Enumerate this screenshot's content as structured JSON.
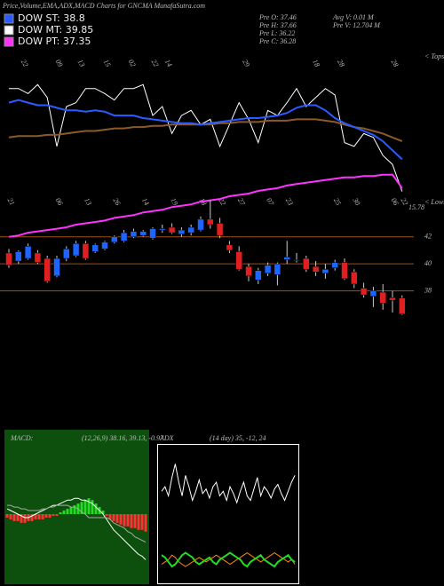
{
  "header": {
    "title": "Price,Volume,EMA,ADX,MACD Charts for GNCMA MunafaSutra.com",
    "legend": [
      {
        "label": "DOW ST: 38.8",
        "color": "#2a5cff"
      },
      {
        "label": "DOW MT: 39.85",
        "color": "#ffffff"
      },
      {
        "label": "DOW PT: 37.35",
        "color": "#ff33ff"
      }
    ],
    "info": [
      "Pre  O: 37.46",
      "Pre  H: 37.66",
      "Pre  L: 36.22",
      "Pre  C: 36.28",
      "Avg  V: 0.01  M",
      "Pre  V: 12.704  M"
    ]
  },
  "chart_data": [
    {
      "type": "line",
      "ylim": [
        0,
        100
      ],
      "annotations": [
        "< Tops"
      ],
      "xticks": [
        {
          "value": 1.4,
          "label": "22"
        },
        {
          "value": 5,
          "label": "09"
        },
        {
          "value": 7.3,
          "label": "13"
        },
        {
          "value": 10,
          "label": "15"
        },
        {
          "value": 12.6,
          "label": "02"
        },
        {
          "value": 15,
          "label": "22"
        },
        {
          "value": 16.4,
          "label": "14"
        },
        {
          "value": 24.5,
          "label": "29"
        },
        {
          "value": 31.8,
          "label": "18"
        },
        {
          "value": 34.4,
          "label": "28"
        },
        {
          "value": 40,
          "label": "28"
        }
      ],
      "series": [
        {
          "color": "#ffffff",
          "values": [
            83,
            83,
            79,
            86,
            76,
            38,
            69,
            72,
            83,
            83,
            79,
            74,
            83,
            83,
            86,
            62,
            69,
            48,
            62,
            66,
            55,
            59,
            38,
            55,
            72,
            59,
            41,
            66,
            62,
            72,
            83,
            69,
            76,
            83,
            78,
            41,
            38,
            48,
            45,
            31,
            24,
            3
          ]
        },
        {
          "color": "#8b5a2b",
          "values": [
            45,
            46,
            46,
            46,
            47,
            47,
            48,
            49,
            50,
            50,
            51,
            52,
            52,
            53,
            53,
            54,
            54,
            55,
            55,
            55,
            55,
            55,
            56,
            56,
            57,
            57,
            57,
            58,
            58,
            58,
            59,
            59,
            59,
            58,
            57,
            55,
            53,
            52,
            50,
            48,
            45,
            42
          ]
        },
        {
          "color": "#2a5cff",
          "values": [
            72,
            74,
            72,
            70,
            70,
            68,
            66,
            66,
            65,
            66,
            65,
            62,
            62,
            62,
            60,
            59,
            58,
            57,
            56,
            56,
            55,
            56,
            57,
            58,
            59,
            60,
            60,
            61,
            62,
            64,
            68,
            70,
            70,
            66,
            60,
            56,
            53,
            50,
            47,
            42,
            35,
            28
          ]
        }
      ]
    },
    {
      "type": "candlestick",
      "ylim": [
        36,
        47.5
      ],
      "yticks": [
        42,
        40,
        38
      ],
      "annotations": [
        "< Lows",
        "15.78"
      ],
      "xticks": [
        {
          "value": 0,
          "label": "21"
        },
        {
          "value": 5,
          "label": "06"
        },
        {
          "value": 8,
          "label": "13"
        },
        {
          "value": 11,
          "label": "26"
        },
        {
          "value": 14,
          "label": "14"
        },
        {
          "value": 17,
          "label": "19"
        },
        {
          "value": 20,
          "label": "18"
        },
        {
          "value": 22,
          "label": "22"
        },
        {
          "value": 24,
          "label": "27"
        },
        {
          "value": 27,
          "label": "07"
        },
        {
          "value": 29,
          "label": "23"
        },
        {
          "value": 34,
          "label": "25"
        },
        {
          "value": 36,
          "label": "30"
        },
        {
          "value": 40,
          "label": "06"
        },
        {
          "value": 41,
          "label": "22"
        }
      ],
      "up_color": "#1e64ff",
      "down_color": "#e02020",
      "candles": [
        [
          40.8,
          41.1,
          39.7,
          39.9
        ],
        [
          40.2,
          41.0,
          40.0,
          40.9
        ],
        [
          40.4,
          41.5,
          40.3,
          41.3
        ],
        [
          40.8,
          41.0,
          40.0,
          40.1
        ],
        [
          40.4,
          40.6,
          38.6,
          38.7
        ],
        [
          39.1,
          40.6,
          39.0,
          40.4
        ],
        [
          40.4,
          41.3,
          40.2,
          41.1
        ],
        [
          40.6,
          41.7,
          40.5,
          41.5
        ],
        [
          41.5,
          41.7,
          40.3,
          40.4
        ],
        [
          40.9,
          41.5,
          40.8,
          41.4
        ],
        [
          41.1,
          41.7,
          41.0,
          41.6
        ],
        [
          41.6,
          42.1,
          41.5,
          42.0
        ],
        [
          41.7,
          42.5,
          41.6,
          42.3
        ],
        [
          42.0,
          42.6,
          41.9,
          42.4
        ],
        [
          42.1,
          42.5,
          42.0,
          42.4
        ],
        [
          41.9,
          42.7,
          41.8,
          42.6
        ],
        [
          42.5,
          42.9,
          42.3,
          42.6
        ],
        [
          42.7,
          43.0,
          42.2,
          42.3
        ],
        [
          42.2,
          42.7,
          42.0,
          42.5
        ],
        [
          42.3,
          42.9,
          42.1,
          42.7
        ],
        [
          42.5,
          43.5,
          42.4,
          43.3
        ],
        [
          43.3,
          44.7,
          42.6,
          42.9
        ],
        [
          43.0,
          43.4,
          41.9,
          42.1
        ],
        [
          41.4,
          41.7,
          40.8,
          41.0
        ],
        [
          40.9,
          41.3,
          39.5,
          39.6
        ],
        [
          39.8,
          40.0,
          38.7,
          39.1
        ],
        [
          38.8,
          39.7,
          38.5,
          39.5
        ],
        [
          39.3,
          40.1,
          39.1,
          39.9
        ],
        [
          39.2,
          40.1,
          38.4,
          40.0
        ],
        [
          40.3,
          41.7,
          40.0,
          40.5
        ],
        [
          40.3,
          40.8,
          40.1,
          40.3
        ],
        [
          40.4,
          40.6,
          39.4,
          39.6
        ],
        [
          39.8,
          40.2,
          39.1,
          39.4
        ],
        [
          39.3,
          40.0,
          38.9,
          39.6
        ],
        [
          39.7,
          40.3,
          39.5,
          40.1
        ],
        [
          40.1,
          40.4,
          38.8,
          38.9
        ],
        [
          39.4,
          39.6,
          38.2,
          38.5
        ],
        [
          38.2,
          38.6,
          37.5,
          37.7
        ],
        [
          37.6,
          38.3,
          36.8,
          38.0
        ],
        [
          37.9,
          38.5,
          36.6,
          37.1
        ],
        [
          37.5,
          38.0,
          36.4,
          37.3
        ],
        [
          37.46,
          37.66,
          36.22,
          36.28
        ]
      ],
      "series": [
        {
          "color": "#ff33ff",
          "values": [
            42.0,
            42.1,
            42.3,
            42.4,
            42.5,
            42.6,
            42.7,
            42.9,
            43.0,
            43.1,
            43.2,
            43.4,
            43.5,
            43.6,
            43.8,
            43.9,
            44.0,
            44.2,
            44.3,
            44.4,
            44.6,
            44.7,
            44.8,
            45.0,
            45.1,
            45.2,
            45.4,
            45.5,
            45.6,
            45.8,
            45.9,
            46.0,
            46.1,
            46.2,
            46.3,
            46.4,
            46.4,
            46.5,
            46.5,
            46.6,
            46.6,
            45.6
          ]
        }
      ]
    },
    {
      "type": "macd",
      "title": "MACD:",
      "subtitle": "(12,26,9) 38.16, 39.13, -0.97",
      "ylim": [
        -4,
        4
      ],
      "up_color": "#22dd22",
      "down_color": "#ff3333",
      "histogram": [
        -0.2,
        -0.3,
        -0.4,
        -0.4,
        -0.5,
        -0.5,
        -0.4,
        -0.4,
        -0.3,
        -0.3,
        -0.3,
        -0.2,
        -0.2,
        -0.1,
        -0.1,
        0.1,
        0.2,
        0.3,
        0.4,
        0.5,
        0.6,
        0.7,
        0.8,
        0.9,
        0.8,
        0.6,
        0.4,
        0.2,
        -0.1,
        -0.3,
        -0.4,
        -0.5,
        -0.6,
        -0.7,
        -0.7,
        -0.8,
        -0.8,
        -0.9,
        -0.9,
        -1.0
      ],
      "series": [
        {
          "color": "#ffffff",
          "values": [
            0.3,
            0.2,
            0.1,
            0.0,
            -0.1,
            -0.2,
            -0.2,
            -0.1,
            0.0,
            0.1,
            0.2,
            0.3,
            0.4,
            0.5,
            0.5,
            0.6,
            0.7,
            0.8,
            0.8,
            0.9,
            0.9,
            0.8,
            0.8,
            0.7,
            0.6,
            0.4,
            0.2,
            0.0,
            -0.3,
            -0.6,
            -0.9,
            -1.1,
            -1.3,
            -1.5,
            -1.7,
            -1.9,
            -2.1,
            -2.3,
            -2.4,
            -2.6
          ]
        },
        {
          "color": "#aaaaaa",
          "values": [
            0.5,
            0.5,
            0.4,
            0.4,
            0.3,
            0.3,
            0.2,
            0.2,
            0.2,
            0.2,
            0.3,
            0.3,
            0.4,
            0.4,
            0.5,
            0.5,
            0.5,
            0.5,
            0.4,
            0.4,
            0.3,
            0.1,
            0.0,
            -0.2,
            -0.2,
            -0.2,
            -0.2,
            -0.2,
            -0.2,
            -0.3,
            -0.5,
            -0.6,
            -0.7,
            -0.8,
            -1.0,
            -1.1,
            -1.3,
            -1.4,
            -1.5,
            -1.6
          ]
        }
      ]
    },
    {
      "type": "adx",
      "title": "ADX",
      "subtitle": "(14 day) 35, -12, 24",
      "ylim": [
        0,
        60
      ],
      "series": [
        {
          "color": "#ffffff",
          "values": [
            40,
            42,
            38,
            46,
            52,
            44,
            38,
            47,
            42,
            36,
            40,
            45,
            39,
            41,
            37,
            42,
            44,
            38,
            40,
            36,
            42,
            39,
            35,
            40,
            44,
            38,
            36,
            41,
            46,
            38,
            42,
            40,
            37,
            41,
            43,
            39,
            36,
            40,
            44,
            47
          ]
        },
        {
          "color": "#ff8800",
          "values": [
            8,
            9,
            10,
            12,
            11,
            9,
            8,
            7,
            8,
            9,
            10,
            11,
            10,
            9,
            10,
            11,
            12,
            11,
            10,
            9,
            8,
            9,
            10,
            11,
            12,
            13,
            12,
            11,
            10,
            9,
            10,
            11,
            12,
            13,
            12,
            11,
            10,
            9,
            10,
            8
          ]
        },
        {
          "color": "#22dd22",
          "values": [
            12,
            11,
            9,
            7,
            8,
            10,
            12,
            13,
            12,
            11,
            9,
            8,
            9,
            10,
            11,
            9,
            8,
            10,
            11,
            12,
            13,
            12,
            11,
            10,
            8,
            7,
            9,
            10,
            11,
            12,
            10,
            9,
            8,
            7,
            9,
            10,
            11,
            12,
            10,
            9
          ]
        }
      ]
    }
  ]
}
